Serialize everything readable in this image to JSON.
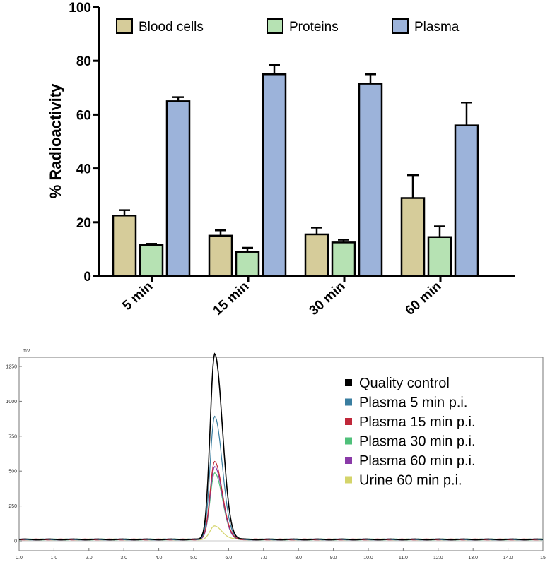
{
  "chart_data": [
    {
      "type": "bar",
      "ylabel": "% Radioactivity",
      "ylim": [
        0,
        100
      ],
      "yticks": [
        "0",
        "20",
        "40",
        "60",
        "80",
        "100"
      ],
      "categories": [
        "5 min",
        "15 min",
        "30 min",
        "60 min"
      ],
      "series": [
        {
          "name": "Blood cells",
          "color": "#d6cc9a",
          "values": [
            22.5,
            15,
            15.5,
            29
          ],
          "errors": [
            2,
            2,
            2.5,
            8.5
          ]
        },
        {
          "name": "Proteins",
          "color": "#b6e2b3",
          "values": [
            11.5,
            9,
            12.5,
            14.5
          ],
          "errors": [
            0.5,
            1.5,
            1,
            4
          ]
        },
        {
          "name": "Plasma",
          "color": "#9cb3da",
          "values": [
            65,
            75,
            71.5,
            56
          ],
          "errors": [
            1.5,
            3.5,
            3.5,
            8.5
          ]
        }
      ]
    },
    {
      "type": "line",
      "yunit": "mV",
      "xticks": [
        "0.0",
        "1.0",
        "2.0",
        "3.0",
        "4.0",
        "5.0",
        "6.0",
        "7.0",
        "8.0",
        "9.0",
        "10.0",
        "11.0",
        "12.0",
        "13.0",
        "14.0",
        "15"
      ],
      "yticks": [
        "0",
        "250",
        "500",
        "750",
        "1000",
        "1250"
      ],
      "xlim": [
        0,
        15
      ],
      "ylim": [
        -50,
        1400
      ],
      "peak_time": 5.6,
      "series": [
        {
          "name": "Quality control",
          "color": "#000000",
          "peak": 1330
        },
        {
          "name": "Plasma 5 min p.i.",
          "color": "#3a7ea0",
          "peak": 880
        },
        {
          "name": "Plasma 15 min p.i.",
          "color": "#c0283a",
          "peak": 560
        },
        {
          "name": "Plasma 30 min p.i.",
          "color": "#4fc07a",
          "peak": 480
        },
        {
          "name": "Plasma 60 min p.i.",
          "color": "#8a3aa8",
          "peak": 520
        },
        {
          "name": "Urine 60 min p.i.",
          "color": "#d4d46a",
          "peak": 95
        }
      ]
    }
  ]
}
